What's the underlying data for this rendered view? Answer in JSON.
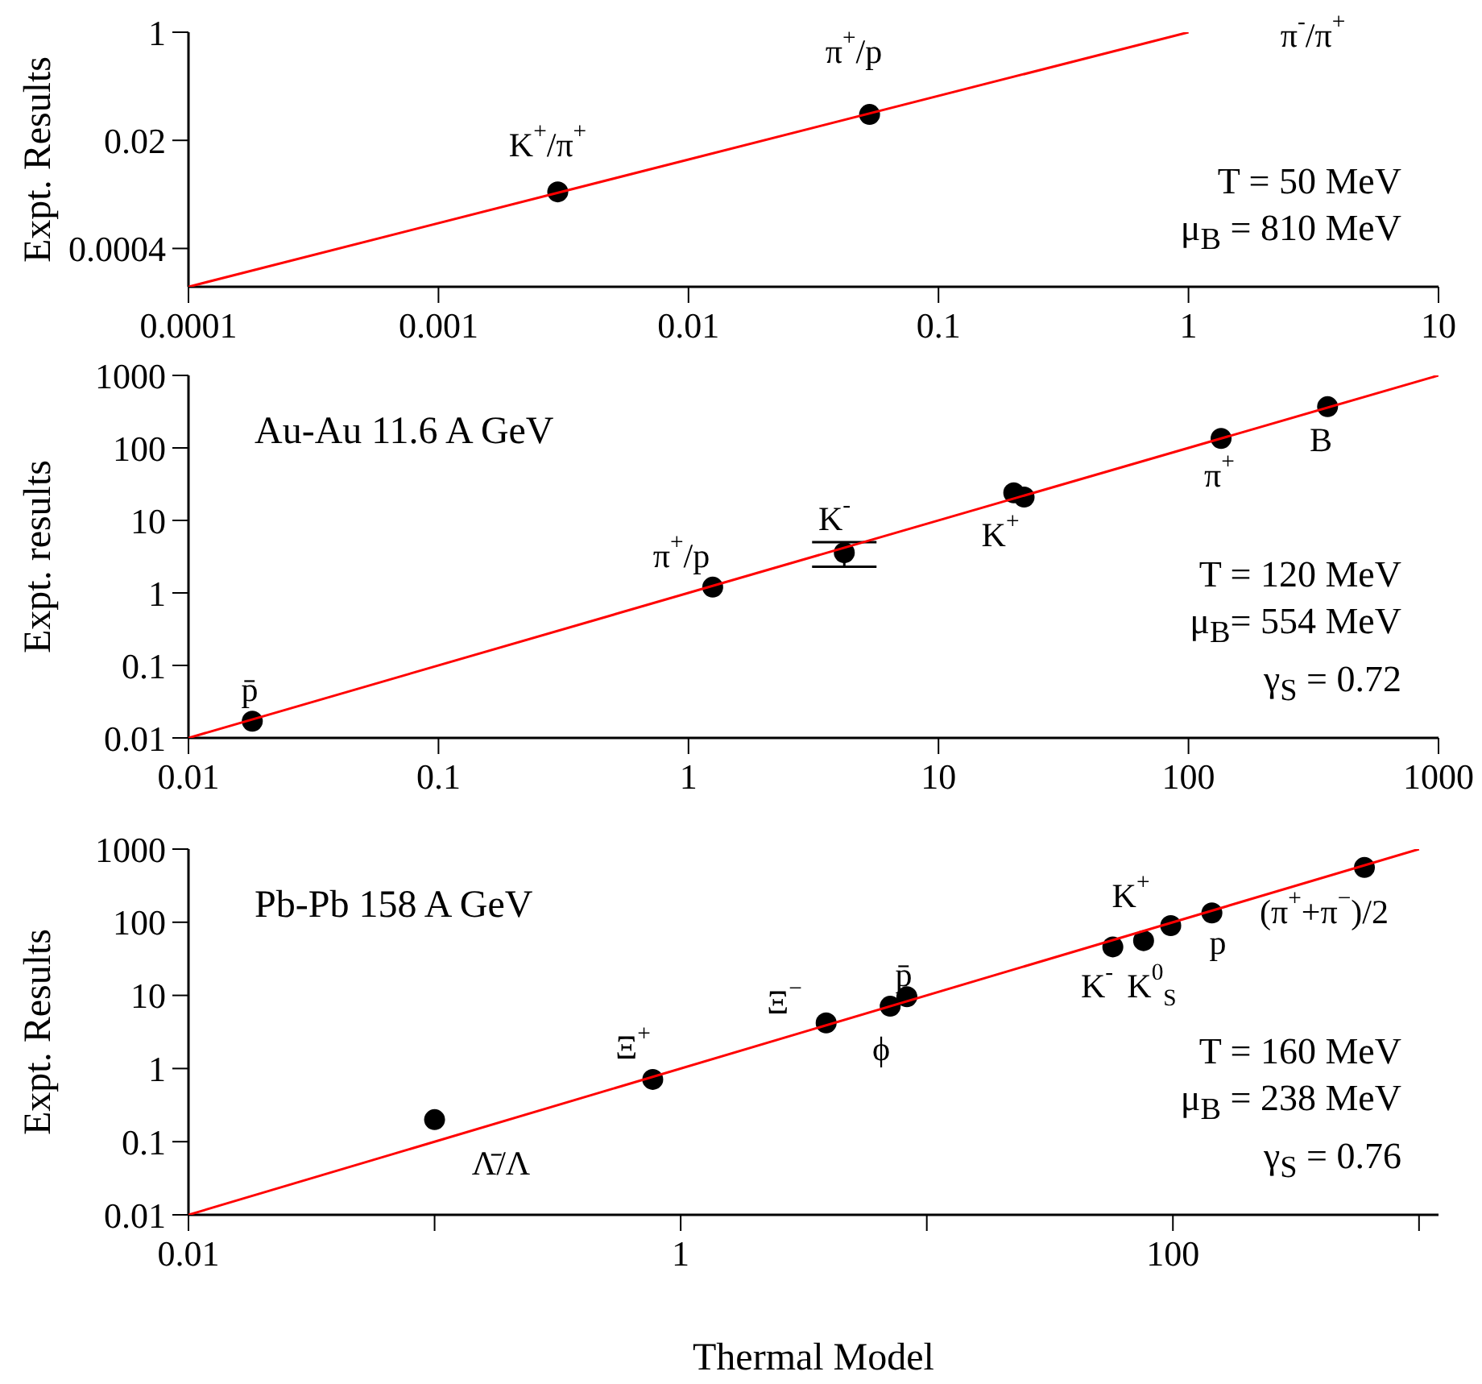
{
  "chart_data": [
    {
      "type": "scatter",
      "ylabel": "Expt. Results",
      "log": "xy",
      "marker": "circle",
      "xlim": [
        0.0001,
        10
      ],
      "ylim": [
        0.0001,
        1
      ],
      "xticks": [
        0.0001,
        0.001,
        0.01,
        0.1,
        1,
        10
      ],
      "yticks": [
        0.0004,
        0.02,
        1
      ],
      "series": [
        {
          "color": "#000000",
          "x": [
            0.003,
            0.053
          ],
          "values": [
            0.0031,
            0.051
          ],
          "errors": [
            0,
            0
          ]
        },
        {
          "type": "line",
          "marker": "none",
          "color": "#ff0000",
          "x": [
            0.0001,
            1
          ],
          "values": [
            0.0001,
            1
          ]
        }
      ],
      "annotations": [
        "K$^{+}$/π$^{+}$",
        "π$^{+}$/p",
        "π$^{-}$/π$^{+}$",
        "T = 50 MeV",
        "μ$_{B}$ = 810 MeV"
      ]
    },
    {
      "type": "scatter",
      "title": "Au-Au 11.6 A GeV",
      "ylabel": "Expt. results",
      "log": "xy",
      "marker": "circle",
      "xlim": [
        0.01,
        1000
      ],
      "ylim": [
        0.01,
        1000
      ],
      "xticks": [
        0.01,
        0.1,
        1,
        10,
        100,
        1000
      ],
      "yticks": [
        0.01,
        0.1,
        1,
        10,
        100,
        1000
      ],
      "series": [
        {
          "color": "#000000",
          "x": [
            0.018,
            1.25,
            4.2,
            20,
            22,
            135,
            360
          ],
          "values": [
            0.017,
            1.2,
            3.6,
            24,
            21,
            135,
            370
          ],
          "errors": [
            0,
            0,
            [
              2.3,
              5
            ],
            0,
            0,
            0,
            0
          ]
        },
        {
          "type": "line",
          "marker": "none",
          "color": "#ff0000",
          "x": [
            0.01,
            1000
          ],
          "values": [
            0.01,
            1000
          ]
        }
      ],
      "annotations": [
        "p̄",
        "π$^{+}$/p",
        "K$^{-}$",
        "K$^{+}$",
        "π$^{+}$",
        "B",
        "T = 120 MeV",
        "μ$_{B}$= 554 MeV",
        "γ$_{S}$ = 0.72"
      ]
    },
    {
      "type": "scatter",
      "title": "Pb-Pb 158 A GeV",
      "xlabel": "Thermal Model",
      "ylabel": "Expt. Results",
      "log": "xy",
      "marker": "circle",
      "xlim": [
        0.01,
        1200
      ],
      "ylim": [
        0.01,
        1000
      ],
      "xticks": [
        0.01,
        {
          "value": 0.1,
          "label": null
        },
        1,
        {
          "value": 10,
          "label": null
        },
        100,
        {
          "value": 1000,
          "label": null
        }
      ],
      "yticks": [
        0.01,
        0.1,
        1,
        10,
        100,
        1000
      ],
      "series": [
        {
          "color": "#000000",
          "x": [
            0.1,
            0.77,
            3.9,
            7.1,
            8.3,
            57,
            76,
            98,
            144,
            600
          ],
          "values": [
            0.2,
            0.71,
            4.2,
            7.1,
            9.6,
            46,
            56,
            90,
            134,
            560
          ],
          "errors": [
            0,
            0,
            0,
            0,
            0,
            0,
            0,
            0,
            0,
            0
          ]
        },
        {
          "type": "line",
          "marker": "none",
          "color": "#ff0000",
          "x": [
            0.01,
            1000
          ],
          "values": [
            0.01,
            1000
          ]
        }
      ],
      "annotations": [
        "Λ̄/Λ",
        "Ξ$^{+}$",
        "Ξ$^{−}$",
        "p̄",
        "ϕ",
        "K$^{+}$",
        "K$^{-}$",
        "K$^{0}$$_{S}$",
        "p",
        "(π$^{+}$+π$^{−}$)/2",
        "T = 160 MeV",
        "μ$_{B}$ = 238 MeV",
        "γ$_{S}$ = 0.76"
      ]
    }
  ]
}
